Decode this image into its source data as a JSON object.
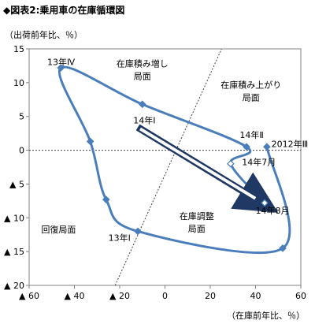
{
  "title": "◆図表2:乗用車の在庫循環図",
  "chart_data": {
    "type": "scatter",
    "xlabel": "（在庫前年比、％）",
    "ylabel": "（出荷前年比、％）",
    "xlim": [
      -60,
      60
    ],
    "ylim": [
      -20,
      15
    ],
    "x_ticks": [
      -60,
      -40,
      -20,
      0,
      20,
      40,
      60
    ],
    "x_tick_labels": [
      "▲ 60",
      "▲ 40",
      "▲ 20",
      "0",
      "20",
      "40",
      "60"
    ],
    "y_ticks": [
      15,
      10,
      5,
      0,
      -5,
      -10,
      -15,
      -20
    ],
    "y_tick_labels": [
      "15",
      "10",
      "5",
      "0",
      "▲ 5",
      "▲ 10",
      "▲ 15",
      "▲ 20"
    ],
    "grid": false,
    "line_color": "#4a7ebb",
    "arrow_color": "#1f3864",
    "points": [
      {
        "x": 45,
        "y": 0.5
      },
      {
        "x": 52,
        "y": -14.5
      },
      {
        "x": -12,
        "y": -12
      },
      {
        "x": -26,
        "y": -7.3
      },
      {
        "x": -33,
        "y": 1.3
      },
      {
        "x": -46,
        "y": 12.2
      },
      {
        "x": -10,
        "y": 6.8
      },
      {
        "x": 36,
        "y": 0.5
      },
      {
        "x": 29,
        "y": -2
      },
      {
        "x": 44,
        "y": -7.8
      }
    ],
    "point_labels": [
      {
        "text": "2012年Ⅲ",
        "x": 47,
        "y": 0.5
      },
      {
        "text": "13年Ⅳ",
        "x": -52,
        "y": 12.6
      },
      {
        "text": "14年Ⅰ",
        "x": -14,
        "y": 4
      },
      {
        "text": "14年Ⅱ",
        "x": 33,
        "y": 1.8
      },
      {
        "text": "14年7月",
        "x": 34,
        "y": -2.2
      },
      {
        "text": "14年8月",
        "x": 40,
        "y": -9.4
      },
      {
        "text": "13年Ⅰ",
        "x": -25,
        "y": -13.4
      }
    ],
    "region_labels": [
      {
        "lines": [
          "在庫積み増し",
          "局面"
        ],
        "x": -10,
        "y": 12.4
      },
      {
        "lines": [
          "在庫積み上がり",
          "局面"
        ],
        "x": 38,
        "y": 9.2
      },
      {
        "lines": [
          "在庫調整",
          "局面"
        ],
        "x": 14,
        "y": -10.2
      },
      {
        "lines": [
          "回復局面"
        ],
        "x": -47,
        "y": -12.2
      }
    ]
  }
}
